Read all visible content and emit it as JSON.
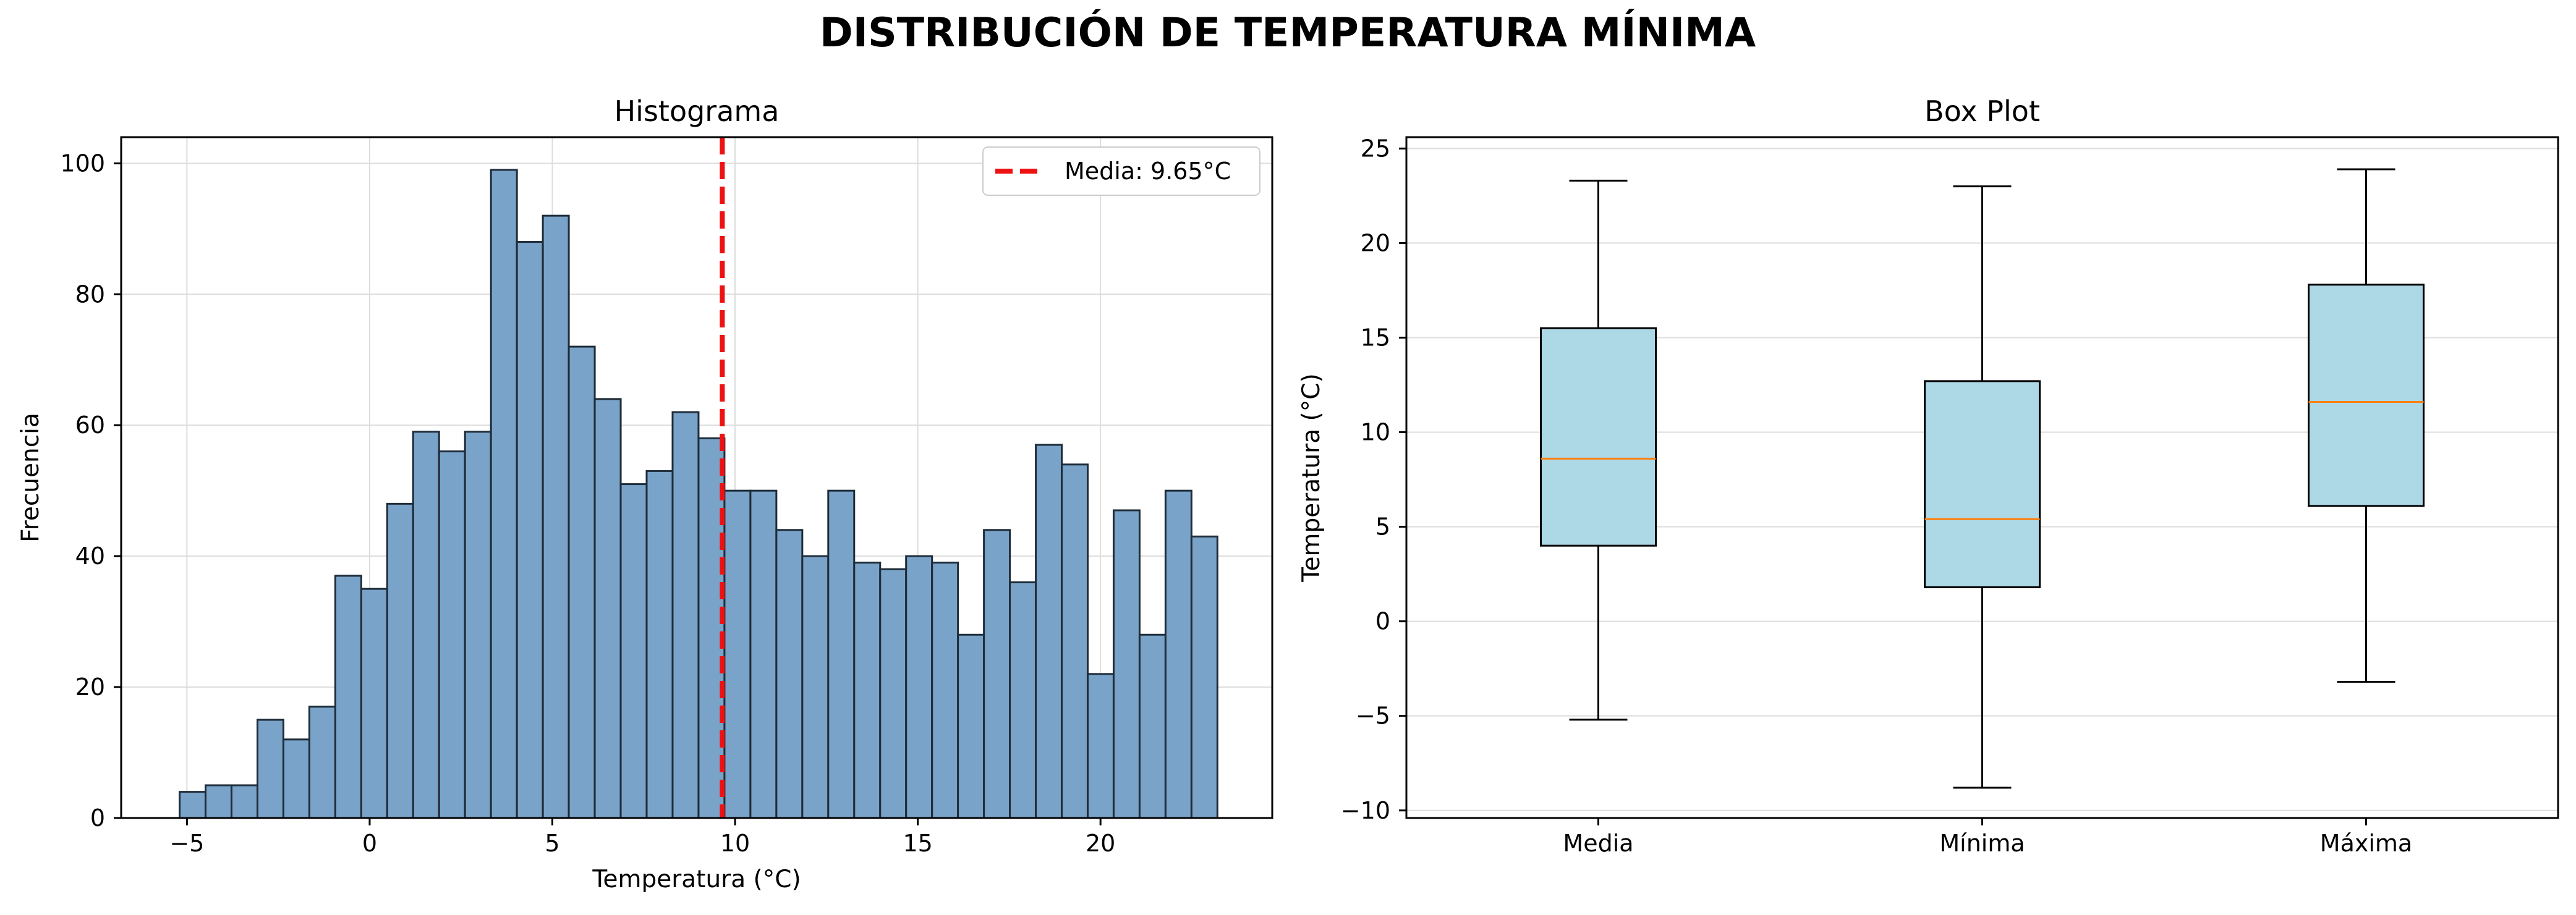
{
  "figure": {
    "suptitle": "DISTRIBUCIÓN DE TEMPERATURA MÍNIMA"
  },
  "colors": {
    "bar_fill": "#79a3c8",
    "bar_edge": "#1f2d3a",
    "mean_line": "#ee1111",
    "box_fill": "#add8e6",
    "median": "#ff7f0e",
    "grid": "#dddddd"
  },
  "chart_data": [
    {
      "type": "bar",
      "subtype": "histogram",
      "title": "Histograma",
      "xlabel": "Temperatura (°C)",
      "ylabel": "Frecuencia",
      "xlim": [
        -6.8,
        24.7
      ],
      "ylim": [
        0,
        104
      ],
      "xticks": [
        -5,
        0,
        5,
        10,
        15,
        20
      ],
      "xtick_labels": [
        "−5",
        "0",
        "5",
        "10",
        "15",
        "20"
      ],
      "yticks": [
        0,
        20,
        40,
        60,
        80,
        100
      ],
      "ytick_labels": [
        "0",
        "20",
        "40",
        "60",
        "80",
        "100"
      ],
      "grid": true,
      "legend_position": "top-right",
      "legend_label": "Media: 9.65°C",
      "mean": 9.65,
      "bin_start": -5.2,
      "bin_width": 0.71,
      "values": [
        4,
        5,
        5,
        15,
        12,
        17,
        37,
        35,
        48,
        59,
        56,
        59,
        99,
        88,
        92,
        72,
        64,
        51,
        53,
        62,
        58,
        50,
        50,
        44,
        40,
        50,
        39,
        38,
        40,
        39,
        28,
        44,
        36,
        57,
        54,
        22,
        47,
        28,
        50,
        43
      ]
    },
    {
      "type": "box",
      "title": "Box Plot",
      "xlabel": "",
      "ylabel": "Temperatura (°C)",
      "ylim": [
        -10.4,
        25.6
      ],
      "yticks": [
        -10,
        -5,
        0,
        5,
        10,
        15,
        20,
        25
      ],
      "ytick_labels": [
        "−10",
        "−5",
        "0",
        "5",
        "10",
        "15",
        "20",
        "25"
      ],
      "grid": true,
      "categories": [
        "Media",
        "Mínima",
        "Máxima"
      ],
      "boxes": [
        {
          "whisker_low": -5.2,
          "q1": 4.0,
          "median": 8.6,
          "q3": 15.5,
          "whisker_high": 23.3
        },
        {
          "whisker_low": -8.8,
          "q1": 1.8,
          "median": 5.4,
          "q3": 12.7,
          "whisker_high": 23.0
        },
        {
          "whisker_low": -3.2,
          "q1": 6.1,
          "median": 11.6,
          "q3": 17.8,
          "whisker_high": 23.9
        }
      ]
    }
  ]
}
